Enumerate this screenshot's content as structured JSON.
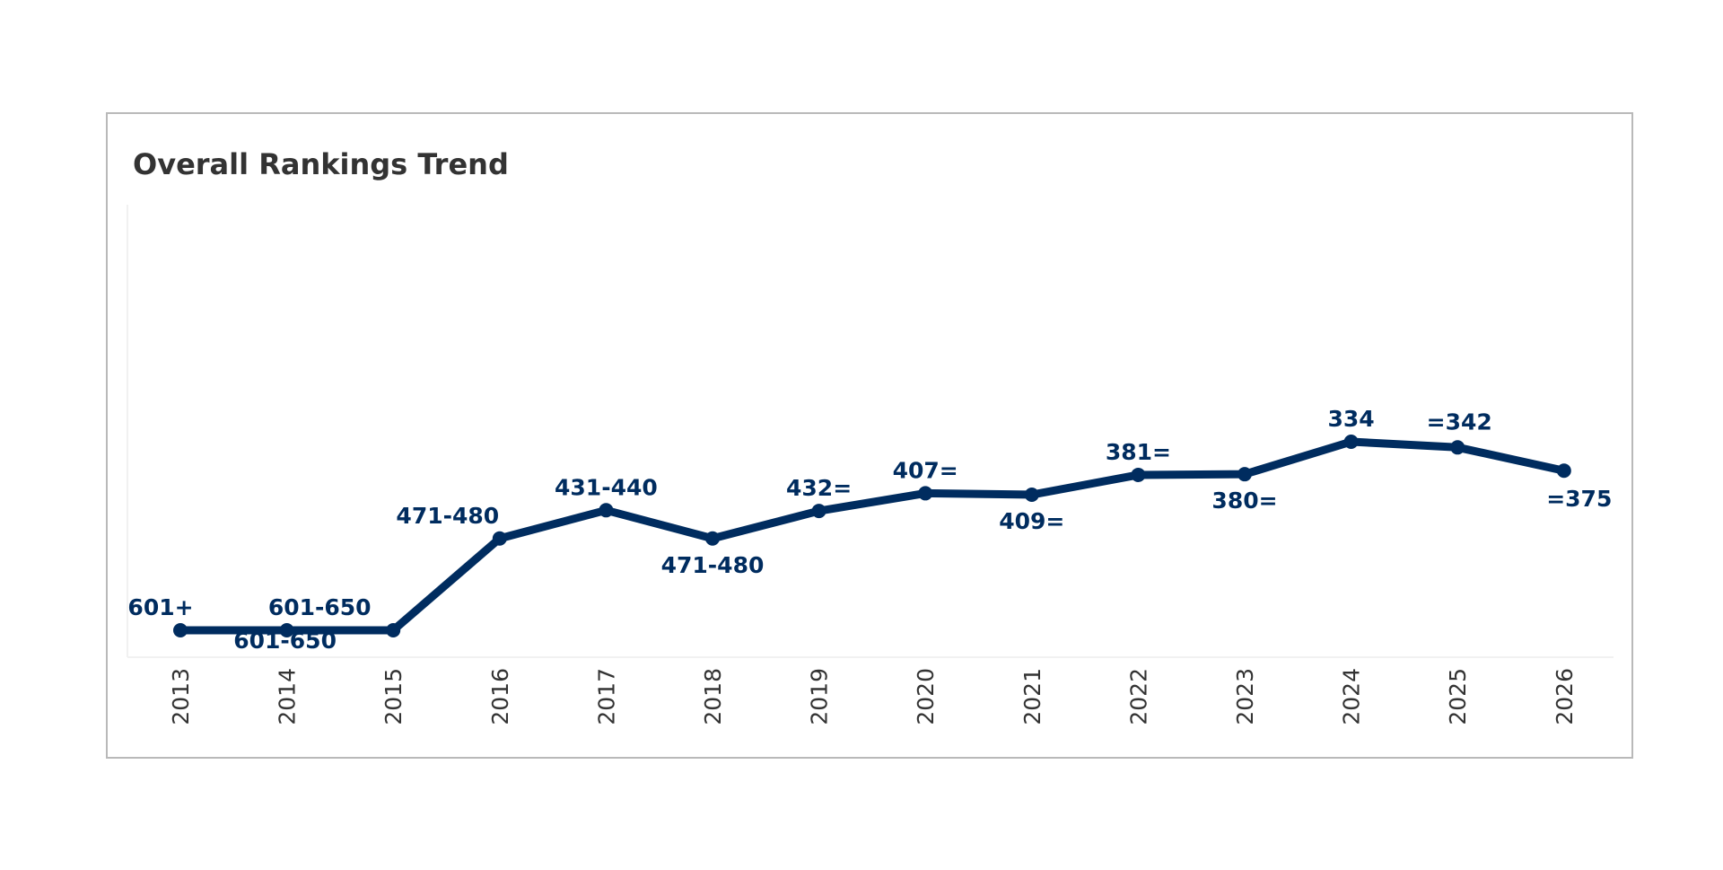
{
  "title": "Overall Rankings Trend",
  "colors": {
    "line": "#002c5f",
    "label": "#002c5f",
    "tick": "#333333",
    "frame": "#b9b9b9",
    "plot_area_edge": "#f1f1f1"
  },
  "chart_data": {
    "type": "line",
    "title": "Overall Rankings Trend",
    "xlabel": "",
    "ylabel": "",
    "y_axis_reversed": true,
    "y_axis_labels_shown": false,
    "grid": false,
    "legend": "none",
    "categories": [
      "2013",
      "2014",
      "2015",
      "2016",
      "2017",
      "2018",
      "2019",
      "2020",
      "2021",
      "2022",
      "2023",
      "2024",
      "2025",
      "2026"
    ],
    "rank_labels": [
      "601+",
      "601-650",
      "601-650",
      "471-480",
      "431-440",
      "471-480",
      "432=",
      "407=",
      "409=",
      "381=",
      "380=",
      "334",
      "=342",
      "=375"
    ],
    "values": [
      601,
      601,
      601,
      471,
      431,
      471,
      432,
      407,
      409,
      381,
      380,
      334,
      342,
      375
    ],
    "label_positions": [
      "above",
      "below",
      "above",
      "above",
      "above",
      "below",
      "above",
      "above",
      "below",
      "above",
      "below",
      "above",
      "above",
      "below"
    ]
  }
}
